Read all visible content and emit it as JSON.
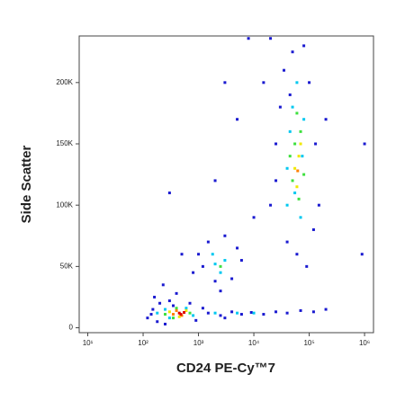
{
  "chart_data": {
    "type": "scatter",
    "x_label": "CD24 PE-Cy™7",
    "y_label": "Side Scatter",
    "xscale": "log",
    "xlim": [
      7,
      1450000
    ],
    "xticks": [
      {
        "value": 10,
        "label": "10¹"
      },
      {
        "value": 100,
        "label": "10²"
      },
      {
        "value": 1000,
        "label": "10³"
      },
      {
        "value": 10000,
        "label": "10⁴"
      },
      {
        "value": 100000,
        "label": "10⁵"
      },
      {
        "value": 1000000,
        "label": "10⁶"
      }
    ],
    "ylim": [
      -4000,
      238000
    ],
    "yticks": [
      0,
      {
        "value": 50000,
        "label": "50K"
      },
      {
        "value": 100000,
        "label": "100K"
      },
      {
        "value": 150000,
        "label": "150K"
      },
      {
        "value": 200000,
        "label": "200K"
      }
    ],
    "series": [
      {
        "color": "#1a1ad0",
        "x": [
          120,
          150,
          180,
          200,
          250,
          300,
          350,
          140,
          700,
          900,
          1200,
          160,
          400,
          230,
          1500,
          2500,
          4000,
          6000,
          9000,
          15000,
          25000,
          40000,
          70000,
          120000,
          200000,
          3000,
          800,
          1000,
          1500,
          2000,
          3000,
          4000,
          6000,
          1200,
          2500,
          5000,
          20000,
          25000,
          30000,
          35000,
          40000,
          50000,
          80000,
          100000,
          130000,
          150000,
          120000,
          25000,
          60000,
          90000,
          200000,
          15000,
          45000,
          300,
          5000,
          2000,
          10000,
          500,
          3000,
          8000,
          20000,
          900000,
          1000000
        ],
        "y": [
          8000,
          15000,
          5000,
          20000,
          3000,
          22000,
          18000,
          11000,
          20000,
          6000,
          16000,
          25000,
          28000,
          35000,
          12000,
          10000,
          13000,
          11000,
          12500,
          11000,
          13000,
          12000,
          14000,
          13000,
          15000,
          8000,
          45000,
          60000,
          70000,
          38000,
          75000,
          40000,
          55000,
          50000,
          30000,
          65000,
          100000,
          150000,
          180000,
          210000,
          70000,
          225000,
          230000,
          200000,
          150000,
          100000,
          80000,
          120000,
          60000,
          50000,
          170000,
          200000,
          190000,
          110000,
          170000,
          120000,
          90000,
          60000,
          200000,
          236000,
          236000,
          60000,
          150000
        ]
      },
      {
        "color": "#00c8f0",
        "x": [
          180,
          300,
          600,
          800,
          250,
          2000,
          5000,
          10000,
          2000,
          2500,
          3000,
          1800,
          40000,
          45000,
          50000,
          70000,
          80000,
          60000,
          55000,
          75000,
          40000
        ],
        "y": [
          12000,
          8000,
          16000,
          10000,
          15000,
          12000,
          12000,
          12000,
          52000,
          45000,
          55000,
          60000,
          100000,
          160000,
          180000,
          90000,
          170000,
          200000,
          110000,
          140000,
          130000
        ]
      },
      {
        "color": "#3ee03e",
        "x": [
          250,
          400,
          700,
          350,
          2500,
          50000,
          55000,
          65000,
          70000,
          60000,
          45000,
          80000
        ],
        "y": [
          11000,
          16000,
          12000,
          8000,
          50000,
          120000,
          150000,
          105000,
          160000,
          175000,
          140000,
          125000
        ]
      },
      {
        "color": "#f0e800",
        "x": [
          300,
          450,
          600,
          55000,
          65000,
          60000,
          70000
        ],
        "y": [
          13000,
          9000,
          14000,
          130000,
          140000,
          115000,
          150000
        ]
      },
      {
        "color": "#ff8000",
        "x": [
          400,
          500,
          350,
          62000
        ],
        "y": [
          14000,
          10000,
          11000,
          128000
        ]
      },
      {
        "color": "#e00000",
        "x": [
          450,
          550,
          480
        ],
        "y": [
          12000,
          12500,
          11000
        ]
      }
    ]
  }
}
